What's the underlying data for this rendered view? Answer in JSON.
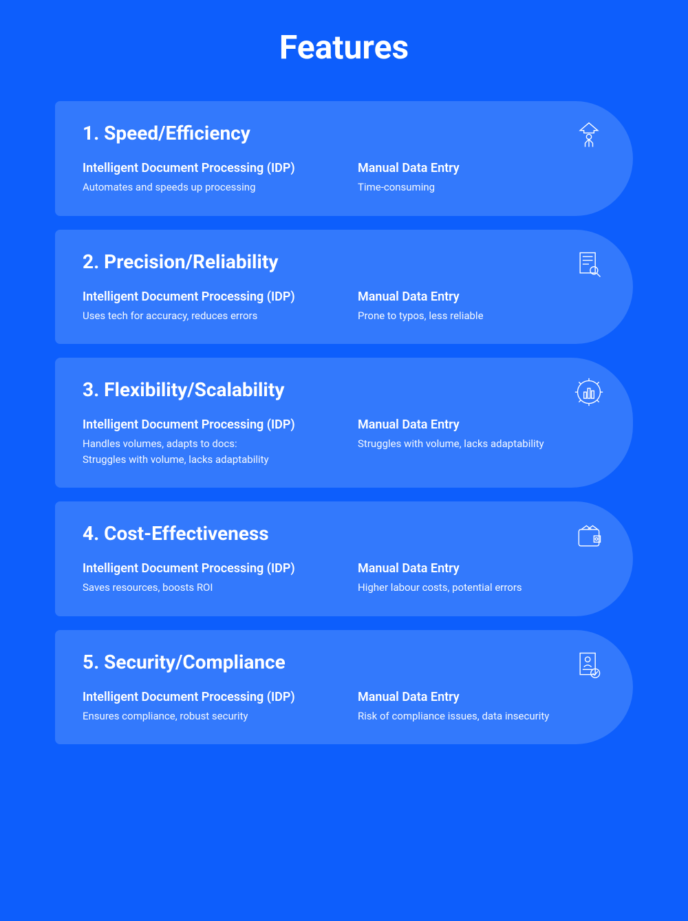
{
  "title": "Features",
  "colors": {
    "background": "#0d5efc",
    "card": "#3379fc",
    "text": "#ffffff"
  },
  "typography": {
    "title_fontsize": 48,
    "card_title_fontsize": 28,
    "heading_fontsize": 18,
    "desc_fontsize": 15
  },
  "layout": {
    "card_border_radius_right": 90,
    "card_gap": 20
  },
  "features": [
    {
      "number": "1.",
      "title": "Speed/Efficiency",
      "icon": "upload-person",
      "left_heading": "Intelligent Document Processing (IDP)",
      "left_desc": "Automates and speeds up processing",
      "right_heading": "Manual Data Entry",
      "right_desc": "Time-consuming"
    },
    {
      "number": "2.",
      "title": "Precision/Reliability",
      "icon": "document-search",
      "left_heading": "Intelligent Document Processing (IDP)",
      "left_desc": "Uses tech for accuracy, reduces errors",
      "right_heading": "Manual Data Entry",
      "right_desc": "Prone to typos, less reliable"
    },
    {
      "number": "3.",
      "title": "Flexibility/Scalability",
      "icon": "gear-chart",
      "left_heading": "Intelligent Document Processing (IDP)",
      "left_desc": "Handles volumes, adapts to docs:\nStruggles with volume, lacks adaptability",
      "right_heading": "Manual Data Entry",
      "right_desc": "Struggles with volume, lacks adaptability"
    },
    {
      "number": "4.",
      "title": "Cost-Effectiveness",
      "icon": "wallet",
      "left_heading": "Intelligent Document Processing (IDP)",
      "left_desc": "Saves resources, boosts ROI",
      "right_heading": "Manual Data Entry",
      "right_desc": "Higher labour costs, potential errors"
    },
    {
      "number": "5.",
      "title": "Security/Compliance",
      "icon": "document-check",
      "left_heading": "Intelligent Document Processing (IDP)",
      "left_desc": "Ensures compliance, robust security",
      "right_heading": "Manual Data Entry",
      "right_desc": "Risk of compliance issues, data insecurity"
    }
  ]
}
